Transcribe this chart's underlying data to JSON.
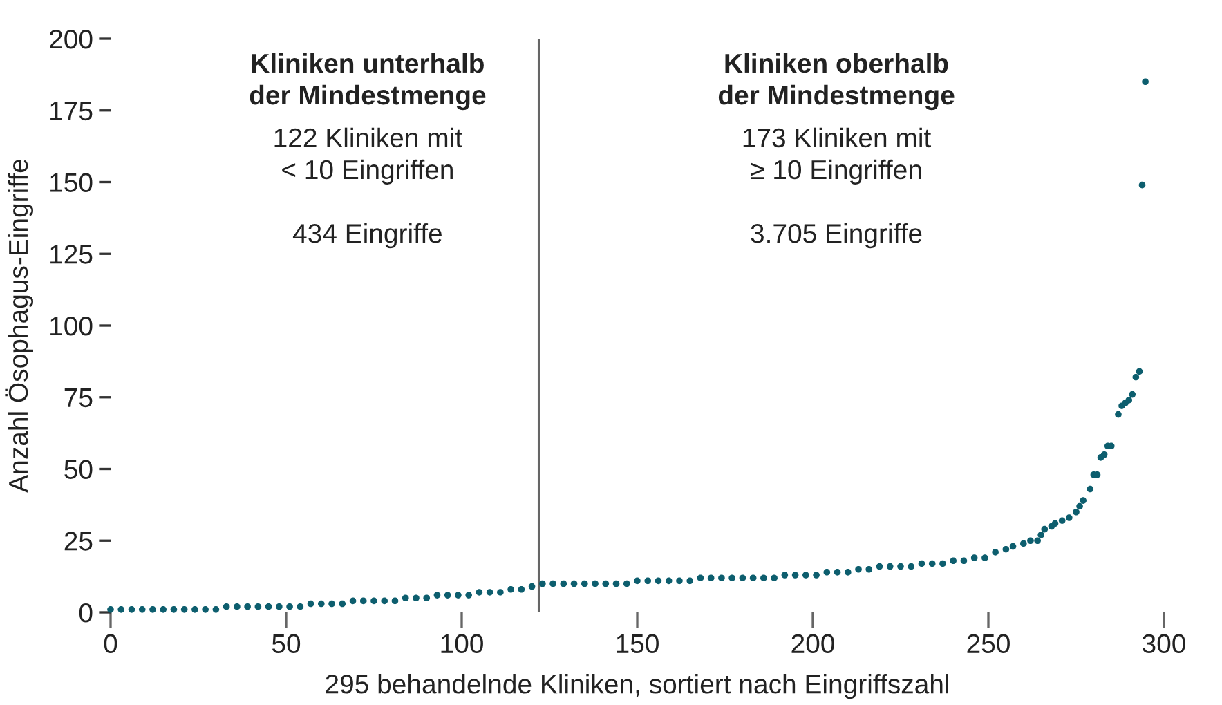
{
  "chart_data": {
    "type": "scatter",
    "xlabel": "295 behandelnde Kliniken, sortiert nach Eingriffszahl",
    "ylabel": "Anzahl Ösophagus-Eingriffe",
    "annotations": [
      "Kliniken unterhalb\nder Mindestmenge",
      "122 Kliniken mit\n< 10 Eingriffen\n\n434 Eingriffe",
      "Kliniken oberhalb\nder Mindestmenge",
      "173 Kliniken mit\n≥ 10 Eingriffen\n\n3.705 Eingriffe"
    ],
    "series": [
      {
        "color": "#0d5e6e",
        "x": [
          0,
          3,
          6,
          9,
          12,
          15,
          18,
          21,
          24,
          27,
          30,
          33,
          36,
          39,
          42,
          45,
          48,
          51,
          54,
          57,
          60,
          63,
          66,
          69,
          72,
          75,
          78,
          81,
          84,
          87,
          90,
          93,
          96,
          99,
          102,
          105,
          108,
          111,
          114,
          117,
          120,
          123,
          126,
          129,
          132,
          135,
          138,
          141,
          144,
          147,
          150,
          153,
          156,
          159,
          162,
          165,
          168,
          171,
          174,
          177,
          180,
          183,
          186,
          189,
          192,
          195,
          198,
          201,
          204,
          207,
          210,
          213,
          216,
          219,
          222,
          225,
          228,
          231,
          234,
          237,
          240,
          243,
          246,
          249,
          252,
          255,
          257,
          260,
          262,
          264,
          265,
          266,
          268,
          269,
          271,
          273,
          275,
          276,
          277,
          279,
          280,
          281,
          282,
          283,
          284,
          285,
          287,
          288,
          289,
          290,
          291,
          292,
          293,
          293.8,
          294.7
        ],
        "values": [
          1,
          1,
          1,
          1,
          1,
          1,
          1,
          1,
          1,
          1,
          1,
          2,
          2,
          2,
          2,
          2,
          2,
          2,
          2,
          3,
          3,
          3,
          3,
          4,
          4,
          4,
          4,
          4,
          5,
          5,
          5,
          6,
          6,
          6,
          6,
          7,
          7,
          7,
          8,
          8,
          9,
          10,
          10,
          10,
          10,
          10,
          10,
          10,
          10,
          10,
          11,
          11,
          11,
          11,
          11,
          11,
          12,
          12,
          12,
          12,
          12,
          12,
          12,
          12,
          13,
          13,
          13,
          13,
          14,
          14,
          14,
          15,
          15,
          16,
          16,
          16,
          16,
          17,
          17,
          17,
          18,
          18,
          19,
          19,
          21,
          22,
          23,
          24,
          25,
          25,
          27,
          29,
          30,
          31,
          32,
          33,
          35,
          37,
          39,
          43,
          48,
          48,
          54,
          55,
          58,
          58,
          69,
          72,
          73,
          74,
          76,
          82,
          84,
          149,
          185
        ]
      }
    ],
    "xlim": [
      0,
      300
    ],
    "xticks": [
      0,
      50,
      100,
      150,
      200,
      250,
      300
    ],
    "ylim": [
      0,
      200
    ],
    "yticks": [
      0,
      25,
      50,
      75,
      100,
      125,
      150,
      175,
      200
    ],
    "ref_lines": [
      {
        "axis": "x",
        "value": 122,
        "color": "#666666"
      }
    ],
    "marker": "circle",
    "grid": false
  }
}
